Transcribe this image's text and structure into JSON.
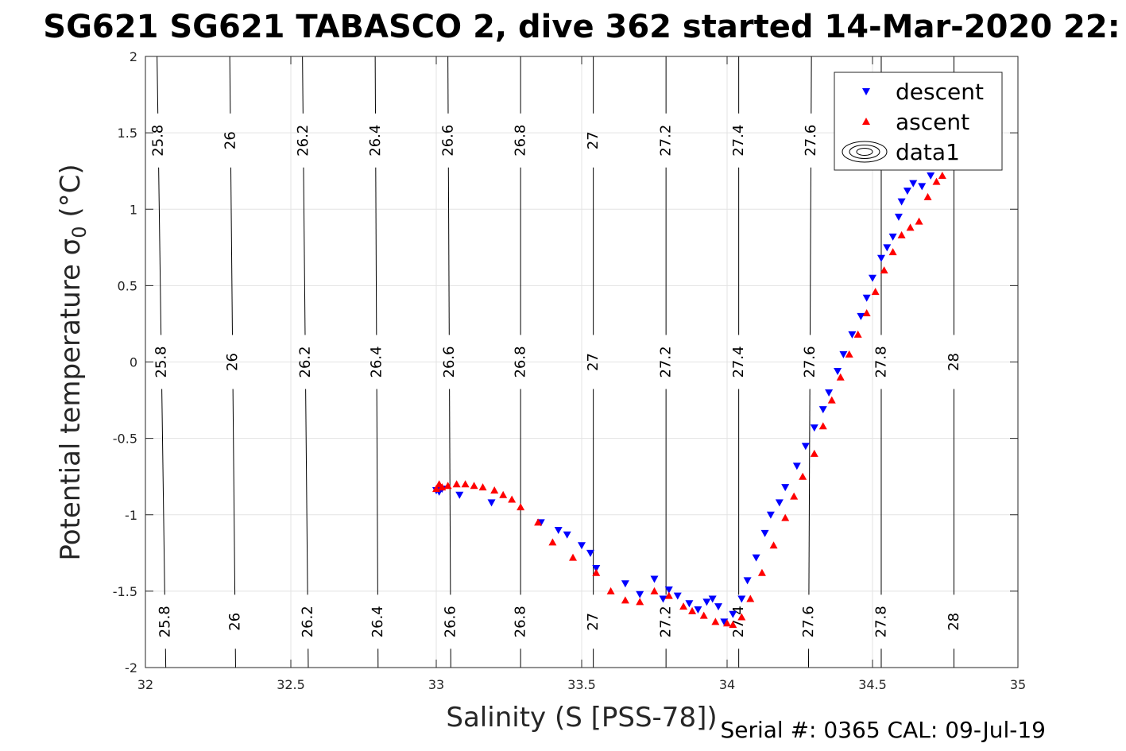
{
  "title": "SG621 SG621 TABASCO 2, dive 362 started 14-Mar-2020 22:",
  "footer": "Serial #: 0365  CAL: 09-Jul-19",
  "chart_data": {
    "type": "scatter",
    "xlabel": "Salinity (S [PSS-78])",
    "ylabel_main": "Potential temperature σ",
    "ylabel_sub": "0",
    "ylabel_unit": " (°C)",
    "xlim": [
      32,
      35
    ],
    "ylim": [
      -2,
      2
    ],
    "xticks": [
      "32",
      "32.5",
      "33",
      "33.5",
      "34",
      "34.5",
      "35"
    ],
    "yticks": [
      "2",
      "1.5",
      "1",
      "0.5",
      "0",
      "-0.5",
      "-1",
      "-1.5",
      "-2"
    ],
    "grid": true,
    "legend_position": "top-right",
    "legend": [
      {
        "name": "descent",
        "marker": "triangle-down",
        "color": "#0000ff"
      },
      {
        "name": "ascent",
        "marker": "triangle-up",
        "color": "#ff0000"
      },
      {
        "name": "data1",
        "marker": "contour",
        "color": "#000000"
      }
    ],
    "density_contours": {
      "levels": [
        "25.8",
        "26",
        "26.2",
        "26.4",
        "26.6",
        "26.8",
        "27",
        "27.2",
        "27.4",
        "27.6",
        "27.8",
        "28"
      ],
      "salinity_at_theta_minus2": [
        32.07,
        32.31,
        32.56,
        32.8,
        33.05,
        33.29,
        33.54,
        33.79,
        34.04,
        34.28,
        34.53,
        34.78
      ],
      "salinity_at_theta_plus2": [
        32.04,
        32.28,
        32.53,
        32.77,
        33.02,
        33.26,
        33.51,
        33.75,
        34.0,
        34.24,
        34.49,
        34.74
      ],
      "salinity_at_theta_plus2_visible": [
        32.04,
        32.29,
        32.54,
        32.79,
        33.04,
        33.29,
        33.54,
        33.79,
        34.04,
        34.29,
        34.53,
        34.78
      ],
      "label_theta_positions": [
        -1.7,
        0,
        1.45
      ]
    },
    "series": [
      {
        "name": "descent",
        "color": "#0000ff",
        "marker": "triangle-down",
        "x": [
          33.0,
          33.01,
          33.02,
          33.08,
          33.19,
          33.36,
          33.42,
          33.45,
          33.5,
          33.53,
          33.55,
          33.65,
          33.7,
          33.75,
          33.78,
          33.8,
          33.83,
          33.87,
          33.9,
          33.93,
          33.95,
          33.97,
          33.99,
          34.02,
          34.05,
          34.07,
          34.1,
          34.13,
          34.15,
          34.18,
          34.2,
          34.24,
          34.27,
          34.3,
          34.33,
          34.35,
          34.38,
          34.4,
          34.43,
          34.46,
          34.48,
          34.5,
          34.53,
          34.55,
          34.57,
          34.59,
          34.6,
          34.62,
          34.64,
          34.67,
          34.7,
          34.72,
          34.74
        ],
        "y": [
          -0.84,
          -0.85,
          -0.83,
          -0.87,
          -0.92,
          -1.05,
          -1.1,
          -1.13,
          -1.2,
          -1.25,
          -1.35,
          -1.45,
          -1.52,
          -1.42,
          -1.55,
          -1.49,
          -1.53,
          -1.58,
          -1.62,
          -1.57,
          -1.55,
          -1.6,
          -1.7,
          -1.65,
          -1.55,
          -1.43,
          -1.28,
          -1.12,
          -1.0,
          -0.92,
          -0.82,
          -0.68,
          -0.55,
          -0.43,
          -0.31,
          -0.2,
          -0.06,
          0.05,
          0.18,
          0.3,
          0.42,
          0.55,
          0.68,
          0.75,
          0.82,
          0.95,
          1.05,
          1.12,
          1.17,
          1.15,
          1.22,
          1.28,
          1.3
        ]
      },
      {
        "name": "ascent",
        "color": "#ff0000",
        "marker": "triangle-up",
        "x": [
          33.0,
          33.01,
          33.02,
          33.04,
          33.07,
          33.1,
          33.13,
          33.16,
          33.2,
          33.23,
          33.26,
          33.29,
          33.35,
          33.4,
          33.47,
          33.55,
          33.6,
          33.65,
          33.7,
          33.75,
          33.8,
          33.85,
          33.88,
          33.92,
          33.96,
          34.0,
          34.02,
          34.05,
          34.08,
          34.12,
          34.16,
          34.2,
          34.23,
          34.26,
          34.3,
          34.33,
          34.36,
          34.39,
          34.42,
          34.45,
          34.48,
          34.51,
          34.54,
          34.57,
          34.6,
          34.63,
          34.66,
          34.69,
          34.72,
          34.74
        ],
        "y": [
          -0.83,
          -0.8,
          -0.82,
          -0.81,
          -0.8,
          -0.8,
          -0.81,
          -0.82,
          -0.84,
          -0.87,
          -0.9,
          -0.95,
          -1.05,
          -1.18,
          -1.28,
          -1.38,
          -1.5,
          -1.56,
          -1.57,
          -1.5,
          -1.53,
          -1.6,
          -1.63,
          -1.66,
          -1.7,
          -1.71,
          -1.72,
          -1.67,
          -1.55,
          -1.38,
          -1.2,
          -1.02,
          -0.88,
          -0.75,
          -0.6,
          -0.42,
          -0.25,
          -0.1,
          0.05,
          0.18,
          0.32,
          0.46,
          0.6,
          0.72,
          0.83,
          0.88,
          0.92,
          1.08,
          1.18,
          1.22
        ]
      }
    ]
  }
}
